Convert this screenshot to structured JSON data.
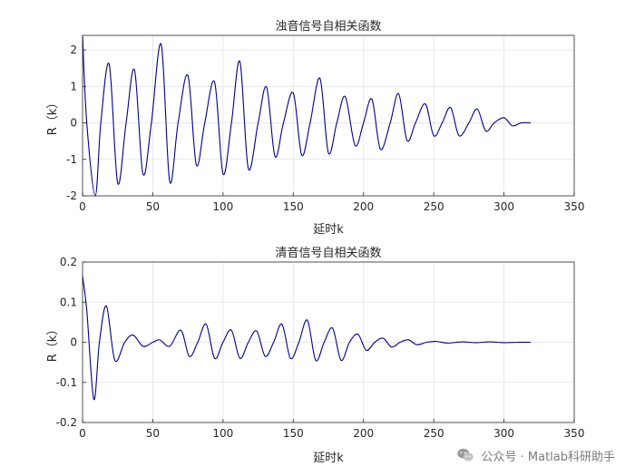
{
  "chart_data": [
    {
      "type": "line",
      "title": "浊音信号自相关函数",
      "xlabel": "延时k",
      "ylabel": "R（k）",
      "xlim": [
        0,
        350
      ],
      "ylim": [
        -2,
        2.4
      ],
      "xticks": [
        0,
        50,
        100,
        150,
        200,
        250,
        300,
        350
      ],
      "yticks": [
        -2,
        -1,
        0,
        1,
        2
      ],
      "grid": true,
      "series": [
        {
          "color": "#00008b",
          "x": [
            0,
            3,
            9,
            13,
            19,
            25,
            31,
            37,
            43,
            49,
            56,
            62,
            68,
            75,
            81,
            87,
            94,
            100,
            106,
            112,
            118,
            125,
            131,
            137,
            143,
            150,
            156,
            162,
            169,
            175,
            181,
            187,
            194,
            200,
            206,
            212,
            219,
            225,
            231,
            237,
            244,
            250,
            256,
            262,
            268,
            275,
            281,
            287,
            293,
            300,
            306,
            312,
            319
          ],
          "y": [
            2.4,
            0.0,
            -2.0,
            0.0,
            1.6,
            -1.65,
            0.0,
            1.45,
            -1.4,
            0.0,
            2.15,
            -1.6,
            0.0,
            1.3,
            -1.15,
            0.0,
            1.12,
            -1.4,
            0.0,
            1.68,
            -1.25,
            0.0,
            0.98,
            -0.92,
            0.0,
            0.82,
            -0.88,
            0.0,
            1.22,
            -0.82,
            0.0,
            0.72,
            -0.62,
            0.0,
            0.65,
            -0.72,
            0.0,
            0.8,
            -0.48,
            0.0,
            0.52,
            -0.35,
            0.0,
            0.42,
            -0.35,
            0.0,
            0.38,
            -0.22,
            0.0,
            0.14,
            -0.08,
            0.0,
            0.0
          ]
        }
      ]
    },
    {
      "type": "line",
      "title": "清音信号自相关函数",
      "xlabel": "延时k",
      "ylabel": "R（k）",
      "xlim": [
        0,
        350
      ],
      "ylim": [
        -0.2,
        0.2
      ],
      "xticks": [
        0,
        50,
        100,
        150,
        200,
        250,
        300,
        350
      ],
      "yticks": [
        -0.2,
        -0.1,
        0,
        0.1,
        0.2
      ],
      "grid": true,
      "series": [
        {
          "color": "#00008b",
          "x": [
            0,
            3,
            8,
            12,
            17,
            23,
            30,
            36,
            43,
            50,
            55,
            62,
            70,
            76,
            82,
            88,
            94,
            100,
            106,
            112,
            118,
            124,
            130,
            136,
            142,
            148,
            154,
            160,
            166,
            172,
            178,
            184,
            190,
            196,
            202,
            208,
            214,
            220,
            226,
            232,
            238,
            245,
            252,
            260,
            270,
            280,
            290,
            300,
            310,
            319
          ],
          "y": [
            0.165,
            0.08,
            -0.142,
            0.0,
            0.09,
            -0.045,
            0.0,
            0.018,
            -0.01,
            0.0,
            0.006,
            -0.01,
            0.03,
            -0.035,
            0.0,
            0.045,
            -0.04,
            0.0,
            0.03,
            -0.04,
            0.0,
            0.028,
            -0.035,
            0.0,
            0.045,
            -0.04,
            0.0,
            0.055,
            -0.045,
            0.0,
            0.035,
            -0.045,
            0.0,
            0.02,
            -0.02,
            0.0,
            0.01,
            -0.012,
            0.0,
            0.006,
            -0.006,
            0.0,
            0.002,
            -0.002,
            0.001,
            -0.001,
            0.001,
            -0.001,
            0.0,
            0.0
          ]
        }
      ]
    }
  ],
  "watermark": {
    "text": "公众号 · Matlab科研助手",
    "icon": "wechat-icon"
  }
}
